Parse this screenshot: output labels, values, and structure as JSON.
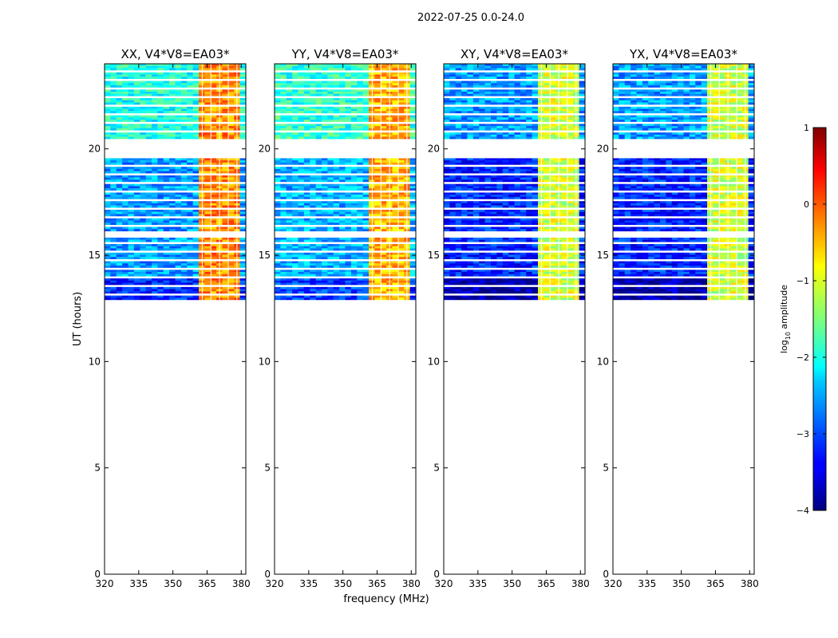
{
  "chart_data": {
    "type": "heatmap",
    "suptitle": "2022-07-25 0.0-24.0",
    "xlabel": "frequency (MHz)",
    "ylabel": "UT (hours)",
    "xlim": [
      320,
      382
    ],
    "ylim": [
      0,
      24
    ],
    "x_ticks": [
      320,
      335,
      350,
      365,
      380
    ],
    "y_ticks": [
      0,
      5,
      10,
      15,
      20
    ],
    "colorbar": {
      "label_main": "log",
      "label_sub": "10",
      "label_rest": " amplitude",
      "range": [
        -4,
        1
      ],
      "ticks": [
        1,
        0,
        -1,
        -2,
        -3,
        -4
      ],
      "tick_labels": [
        "1",
        "0",
        "−1",
        "−2",
        "−3",
        "−4"
      ]
    },
    "data_time_range": [
      12.9,
      24.0
    ],
    "gaps": [
      [
        19.6,
        20.35
      ],
      [
        15.85,
        16.1
      ],
      [
        13.7,
        13.75
      ],
      [
        13.1,
        13.15
      ]
    ],
    "rfi_band": [
      361,
      380
    ],
    "panels": [
      {
        "title": "XX, V4*V8=EA03*",
        "base_level": -2.6,
        "rfi_level": -0.3
      },
      {
        "title": "YY, V4*V8=EA03*",
        "base_level": -2.5,
        "rfi_level": -0.5
      },
      {
        "title": "XY, V4*V8=EA03*",
        "base_level": -3.2,
        "rfi_level": -1.1
      },
      {
        "title": "YX, V4*V8=EA03*",
        "base_level": -3.2,
        "rfi_level": -1.1
      }
    ]
  }
}
